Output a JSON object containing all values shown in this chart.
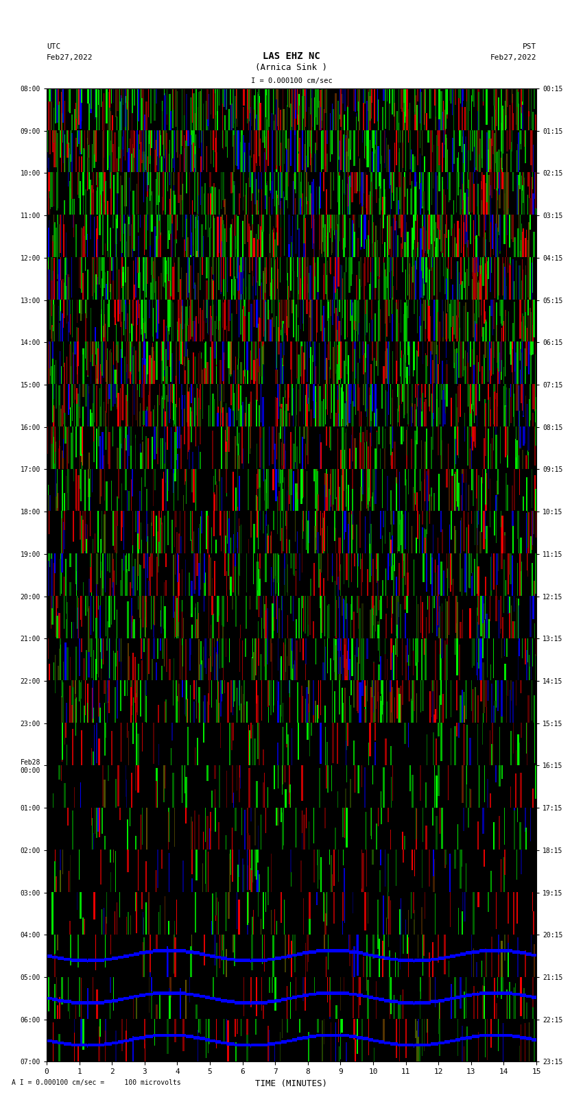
{
  "title_line1": "LAS EHZ NC",
  "title_line2": "(Arnica Sink )",
  "scale_label": "I = 0.000100 cm/sec",
  "left_label_line1": "UTC",
  "left_label_line2": "Feb27,2022",
  "right_label_line1": "PST",
  "right_label_line2": "Feb27,2022",
  "xlabel": "TIME (MINUTES)",
  "bottom_note": "A I = 0.000100 cm/sec =     100 microvolts",
  "xlim": [
    0,
    15
  ],
  "ylim": [
    0,
    23
  ],
  "ytick_left": [
    "08:00",
    "09:00",
    "10:00",
    "11:00",
    "12:00",
    "13:00",
    "14:00",
    "15:00",
    "16:00",
    "17:00",
    "18:00",
    "19:00",
    "20:00",
    "21:00",
    "22:00",
    "23:00",
    "Feb28\n00:00",
    "01:00",
    "02:00",
    "03:00",
    "04:00",
    "05:00",
    "06:00",
    "07:00"
  ],
  "ytick_right": [
    "00:15",
    "01:15",
    "02:15",
    "03:15",
    "04:15",
    "05:15",
    "06:15",
    "07:15",
    "08:15",
    "09:15",
    "10:15",
    "11:15",
    "12:15",
    "13:15",
    "14:15",
    "15:15",
    "16:15",
    "17:15",
    "18:15",
    "19:15",
    "20:15",
    "21:15",
    "22:15",
    "23:15"
  ],
  "bg_color": "#000000",
  "fig_bg": "#ffffff",
  "n_rows": 23,
  "n_cols": 900,
  "seed": 42
}
